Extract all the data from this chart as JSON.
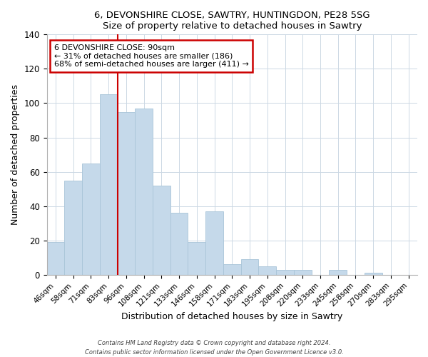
{
  "title1": "6, DEVONSHIRE CLOSE, SAWTRY, HUNTINGDON, PE28 5SG",
  "title2": "Size of property relative to detached houses in Sawtry",
  "xlabel": "Distribution of detached houses by size in Sawtry",
  "ylabel": "Number of detached properties",
  "bar_labels": [
    "46sqm",
    "58sqm",
    "71sqm",
    "83sqm",
    "96sqm",
    "108sqm",
    "121sqm",
    "133sqm",
    "146sqm",
    "158sqm",
    "171sqm",
    "183sqm",
    "195sqm",
    "208sqm",
    "220sqm",
    "233sqm",
    "245sqm",
    "258sqm",
    "270sqm",
    "283sqm",
    "295sqm"
  ],
  "bar_values": [
    19,
    55,
    65,
    105,
    95,
    97,
    52,
    36,
    19,
    37,
    6,
    9,
    5,
    3,
    3,
    0,
    3,
    0,
    1,
    0,
    0
  ],
  "bar_color": "#c5d9ea",
  "bar_edge_color": "#a8c4d8",
  "highlight_color": "#cc0000",
  "annotation_title": "6 DEVONSHIRE CLOSE: 90sqm",
  "annotation_line1": "← 31% of detached houses are smaller (186)",
  "annotation_line2": "68% of semi-detached houses are larger (411) →",
  "annotation_box_color": "#ffffff",
  "annotation_box_edge": "#cc0000",
  "ylim": [
    0,
    140
  ],
  "yticks": [
    0,
    20,
    40,
    60,
    80,
    100,
    120,
    140
  ],
  "red_line_x": 4.0,
  "footer1": "Contains HM Land Registry data © Crown copyright and database right 2024.",
  "footer2": "Contains public sector information licensed under the Open Government Licence v3.0."
}
